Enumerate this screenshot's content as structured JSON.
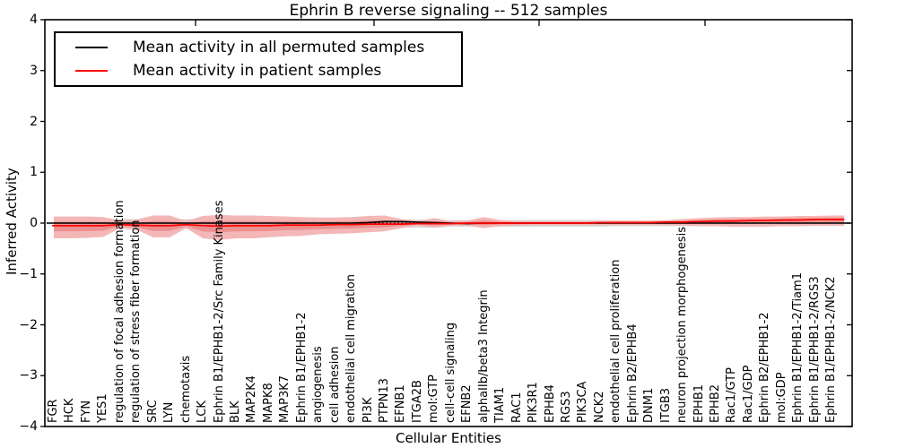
{
  "title": "Ephrin B reverse signaling -- 512 samples",
  "axes": {
    "x_label": "Cellular Entities",
    "y_label": "Inferred Activity",
    "y_tick_labels": [
      "4",
      "3",
      "2",
      "1",
      "0",
      "−1",
      "−2",
      "−3",
      "−4"
    ],
    "y_min": -4,
    "y_max": 4
  },
  "legend": {
    "items": [
      {
        "label": "Mean activity in all permuted samples",
        "color": "#000000"
      },
      {
        "label": "Mean activity in patient samples",
        "color": "#ff0000"
      }
    ]
  },
  "colors": {
    "permuted_band": "#d8d8d8",
    "patient_band_outer": "#f3b3b3",
    "patient_band_inner": "#eb9191",
    "permuted_mean_line": "#000000",
    "patient_mean_line": "#ff0000",
    "zero_line": "#000000",
    "frame": "#000000"
  },
  "chart_data": {
    "type": "line",
    "title": "Ephrin B reverse signaling -- 512 samples",
    "xlabel": "Cellular Entities",
    "ylabel": "Inferred Activity",
    "ylim": [
      -4,
      4
    ],
    "grid": false,
    "legend_position": "upper left",
    "zero_line": 0,
    "categories": [
      "FGR",
      "HCK",
      "FYN",
      "YES1",
      "regulation of focal adhesion formation",
      "regulation of stress fiber formation",
      "SRC",
      "LYN",
      "chemotaxis",
      "LCK",
      "Ephrin B1/EPHB1-2/Src Family Kinases",
      "BLK",
      "MAP2K4",
      "MAPK8",
      "MAP3K7",
      "Ephrin B1/EPHB1-2",
      "angiogenesis",
      "cell adhesion",
      "endothelial cell migration",
      "PI3K",
      "PTPN13",
      "EFNB1",
      "ITGA2B",
      "mol:GTP",
      "cell-cell signaling",
      "EFNB2",
      "alphaIIb/beta3 Integrin",
      "TIAM1",
      "RAC1",
      "PIK3R1",
      "EPHB4",
      "RGS3",
      "PIK3CA",
      "NCK2",
      "endothelial cell proliferation",
      "Ephrin B2/EPHB4",
      "DNM1",
      "ITGB3",
      "neuron projection morphogenesis",
      "EPHB1",
      "EPHB2",
      "Rac1/GTP",
      "Rac1/GDP",
      "Ephrin B2/EPHB1-2",
      "mol:GDP",
      "Ephrin B1/EPHB1-2/Tiam1",
      "Ephrin B1/EPHB1-2/RGS3",
      "Ephrin B1/EPHB1-2/NCK2"
    ],
    "series": [
      {
        "name": "Mean activity in all permuted samples",
        "color": "#000000",
        "values": [
          0,
          0,
          0,
          0,
          0,
          0,
          0,
          0,
          0,
          0,
          0,
          0,
          0,
          0,
          0,
          0,
          0,
          0,
          0,
          0.01,
          0.03,
          0.03,
          0.02,
          0.01,
          0,
          -0.01,
          0,
          0,
          0,
          0,
          0,
          0,
          0,
          0,
          0,
          0,
          0,
          0,
          0,
          0,
          0,
          0,
          0,
          0,
          0,
          0,
          0,
          0
        ]
      },
      {
        "name": "Mean activity in patient samples",
        "color": "#ff0000",
        "values": [
          -0.05,
          -0.05,
          -0.05,
          -0.05,
          -0.03,
          -0.04,
          -0.05,
          -0.05,
          -0.03,
          -0.05,
          -0.06,
          -0.05,
          -0.05,
          -0.05,
          -0.04,
          -0.04,
          -0.04,
          -0.03,
          -0.03,
          -0.02,
          -0.02,
          -0.02,
          -0.01,
          -0.01,
          -0.01,
          0,
          0,
          0,
          0,
          0,
          0,
          0,
          0,
          0.01,
          0.01,
          0.01,
          0.01,
          0.02,
          0.02,
          0.03,
          0.04,
          0.04,
          0.05,
          0.05,
          0.06,
          0.06,
          0.07,
          0.07
        ]
      }
    ],
    "bands": [
      {
        "name": "permuted-sample-range",
        "color": "#d8d8d8",
        "upper": [
          0.08,
          0.08,
          0.08,
          0.08,
          0.08,
          0.08,
          0.08,
          0.08,
          0.08,
          0.08,
          0.08,
          0.08,
          0.08,
          0.08,
          0.08,
          0.08,
          0.07,
          0.07,
          0.07,
          0.07,
          0.07,
          0.07,
          0.07,
          0.07,
          0.06,
          0.06,
          0.06,
          0.06,
          0.06,
          0.06,
          0.06,
          0.06,
          0.06,
          0.06,
          0.05,
          0.05,
          0.05,
          0.05,
          0.05,
          0.05,
          0.05,
          0.05,
          0.05,
          0.05,
          0.05,
          0.05,
          0.05,
          0.05
        ],
        "lower": [
          -0.12,
          -0.12,
          -0.12,
          -0.12,
          -0.12,
          -0.12,
          -0.12,
          -0.12,
          -0.12,
          -0.12,
          -0.12,
          -0.12,
          -0.12,
          -0.12,
          -0.12,
          -0.12,
          -0.09,
          -0.09,
          -0.09,
          -0.09,
          -0.09,
          -0.09,
          -0.09,
          -0.09,
          -0.07,
          -0.07,
          -0.07,
          -0.07,
          -0.07,
          -0.07,
          -0.07,
          -0.07,
          -0.07,
          -0.07,
          -0.06,
          -0.06,
          -0.06,
          -0.06,
          -0.06,
          -0.06,
          -0.06,
          -0.06,
          -0.06,
          -0.06,
          -0.06,
          -0.06,
          -0.06,
          -0.06
        ]
      },
      {
        "name": "patient-sample-range-outer",
        "color": "#f3b3b3",
        "upper": [
          0.13,
          0.13,
          0.13,
          0.12,
          0.05,
          0.07,
          0.15,
          0.15,
          0.04,
          0.14,
          0.16,
          0.15,
          0.15,
          0.14,
          0.13,
          0.12,
          0.11,
          0.11,
          0.12,
          0.14,
          0.15,
          0.08,
          0.04,
          0.1,
          0.04,
          0.05,
          0.12,
          0.06,
          0.04,
          0.04,
          0.04,
          0.04,
          0.04,
          0.04,
          0.05,
          0.05,
          0.05,
          0.06,
          0.08,
          0.1,
          0.11,
          0.12,
          0.12,
          0.13,
          0.13,
          0.14,
          0.14,
          0.15
        ],
        "lower": [
          -0.3,
          -0.3,
          -0.29,
          -0.27,
          -0.1,
          -0.13,
          -0.28,
          -0.28,
          -0.1,
          -0.3,
          -0.33,
          -0.3,
          -0.3,
          -0.28,
          -0.26,
          -0.25,
          -0.22,
          -0.21,
          -0.2,
          -0.18,
          -0.16,
          -0.1,
          -0.05,
          -0.09,
          -0.05,
          -0.05,
          -0.1,
          -0.06,
          -0.05,
          -0.04,
          -0.04,
          -0.04,
          -0.04,
          -0.04,
          -0.04,
          -0.04,
          -0.04,
          -0.04,
          -0.05,
          -0.06,
          -0.06,
          -0.07,
          -0.07,
          -0.07,
          -0.06,
          -0.06,
          -0.05,
          -0.05
        ]
      },
      {
        "name": "patient-sample-range-inner",
        "color": "#eb9191",
        "fraction_of_outer": 0.45
      }
    ]
  }
}
